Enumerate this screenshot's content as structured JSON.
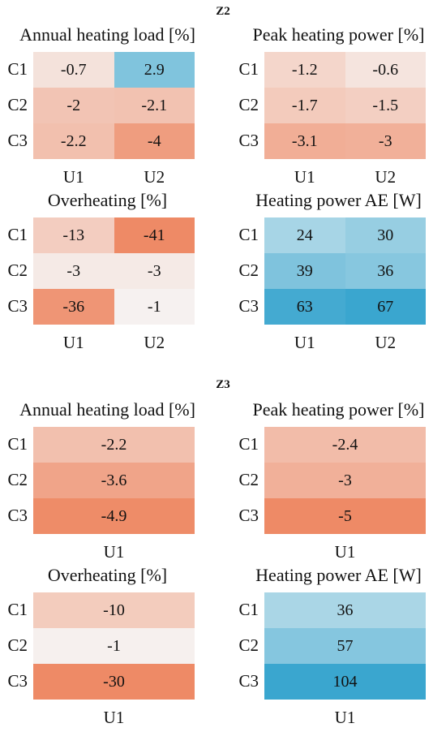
{
  "chart_data": [
    {
      "section": "Z2",
      "panels": [
        {
          "type": "heatmap",
          "title": "Annual heating load [%]",
          "rows": [
            "C1",
            "C2",
            "C3"
          ],
          "cols": [
            "U1",
            "U2"
          ],
          "values": [
            [
              -0.7,
              2.9
            ],
            [
              -2,
              -2.1
            ],
            [
              -2.2,
              -4
            ]
          ],
          "labels": [
            [
              "-0.7",
              "2.9"
            ],
            [
              "-2",
              "-2.1"
            ],
            [
              "-2.2",
              "-4"
            ]
          ]
        },
        {
          "type": "heatmap",
          "title": "Peak heating power [%]",
          "rows": [
            "C1",
            "C2",
            "C3"
          ],
          "cols": [
            "U1",
            "U2"
          ],
          "values": [
            [
              -1.2,
              -0.6
            ],
            [
              -1.7,
              -1.5
            ],
            [
              -3.1,
              -3
            ]
          ],
          "labels": [
            [
              "-1.2",
              "-0.6"
            ],
            [
              "-1.7",
              "-1.5"
            ],
            [
              "-3.1",
              "-3"
            ]
          ]
        },
        {
          "type": "heatmap",
          "title": "Overheating [%]",
          "rows": [
            "C1",
            "C2",
            "C3"
          ],
          "cols": [
            "U1",
            "U2"
          ],
          "values": [
            [
              -13,
              -41
            ],
            [
              -3,
              -3
            ],
            [
              -36,
              -1
            ]
          ],
          "labels": [
            [
              "-13",
              "-41"
            ],
            [
              "-3",
              "-3"
            ],
            [
              "-36",
              "-1"
            ]
          ]
        },
        {
          "type": "heatmap",
          "title": "Heating power AE [W]",
          "rows": [
            "C1",
            "C2",
            "C3"
          ],
          "cols": [
            "U1",
            "U2"
          ],
          "values": [
            [
              24,
              30
            ],
            [
              39,
              36
            ],
            [
              63,
              67
            ]
          ],
          "labels": [
            [
              "24",
              "30"
            ],
            [
              "39",
              "36"
            ],
            [
              "63",
              "67"
            ]
          ]
        }
      ]
    },
    {
      "section": "Z3",
      "panels": [
        {
          "type": "heatmap",
          "title": "Annual heating load [%]",
          "rows": [
            "C1",
            "C2",
            "C3"
          ],
          "cols": [
            "U1"
          ],
          "values": [
            [
              -2.2
            ],
            [
              -3.6
            ],
            [
              -4.9
            ]
          ],
          "labels": [
            [
              "-2.2"
            ],
            [
              "-3.6"
            ],
            [
              "-4.9"
            ]
          ]
        },
        {
          "type": "heatmap",
          "title": "Peak heating power [%]",
          "rows": [
            "C1",
            "C2",
            "C3"
          ],
          "cols": [
            "U1"
          ],
          "values": [
            [
              -2.4
            ],
            [
              -3
            ],
            [
              -5
            ]
          ],
          "labels": [
            [
              "-2.4"
            ],
            [
              "-3"
            ],
            [
              "-5"
            ]
          ]
        },
        {
          "type": "heatmap",
          "title": "Overheating [%]",
          "rows": [
            "C1",
            "C2",
            "C3"
          ],
          "cols": [
            "U1"
          ],
          "values": [
            [
              -10
            ],
            [
              -1
            ],
            [
              -30
            ]
          ],
          "labels": [
            [
              "-10"
            ],
            [
              "-1"
            ],
            [
              "-30"
            ]
          ]
        },
        {
          "type": "heatmap",
          "title": "Heating power AE [W]",
          "rows": [
            "C1",
            "C2",
            "C3"
          ],
          "cols": [
            "U1"
          ],
          "values": [
            [
              36
            ],
            [
              57
            ],
            [
              104
            ]
          ],
          "labels": [
            [
              "36"
            ],
            [
              "57"
            ],
            [
              "104"
            ]
          ]
        }
      ]
    }
  ],
  "colors": {
    "negative": "#ee8a66",
    "positive": "#3aa6cf",
    "neutral": "#f6f6f6",
    "border": "#444444"
  }
}
